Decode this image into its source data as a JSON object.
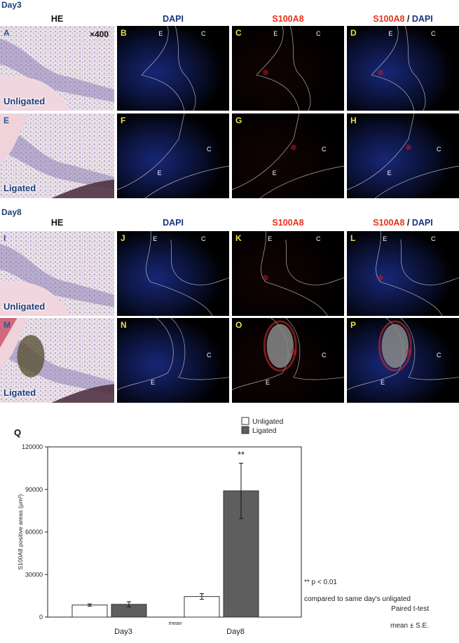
{
  "days": [
    {
      "label": "Day3",
      "rows": [
        {
          "condition": "Unligated",
          "letters": [
            "A",
            "B",
            "C",
            "D"
          ],
          "magnification": "×400"
        },
        {
          "condition": "Ligated",
          "letters": [
            "E",
            "F",
            "G",
            "H"
          ],
          "magnification": ""
        }
      ]
    },
    {
      "label": "Day8",
      "rows": [
        {
          "condition": "Unligated",
          "letters": [
            "I",
            "J",
            "K",
            "L"
          ],
          "magnification": ""
        },
        {
          "condition": "Ligated",
          "letters": [
            "M",
            "N",
            "O",
            "P"
          ],
          "magnification": ""
        }
      ]
    }
  ],
  "column_headers": {
    "he": "HE",
    "dapi": "DAPI",
    "s100a8": "S100A8",
    "merge_s100a8": "S100A8",
    "merge_slash": " / ",
    "merge_dapi": "DAPI"
  },
  "region_labels": {
    "epithelium": "E",
    "connective": "C"
  },
  "colors": {
    "dapi_blue": "#1a3580",
    "s100a8_red": "#e8301c",
    "panel_letter_he": "#2d5696",
    "panel_letter_fluor": "#e8e04a",
    "bar_unligated": "#ffffff",
    "bar_ligated": "#5e5e5e"
  },
  "chart_data": {
    "panel_letter": "Q",
    "type": "bar",
    "categories": [
      "Day3",
      "Day8"
    ],
    "series": [
      {
        "name": "Unligated",
        "values": [
          8500,
          14500
        ],
        "errors": [
          800,
          2000
        ]
      },
      {
        "name": "Ligated",
        "values": [
          9000,
          89000
        ],
        "errors": [
          1800,
          19500
        ]
      }
    ],
    "ylabel": "S100A8 positive areas (μm²)",
    "ylim": [
      0,
      120000
    ],
    "yticks": [
      0,
      30000,
      60000,
      90000,
      120000
    ],
    "significance_marker": "**",
    "mean_label": "mean",
    "legend_position": "top-center",
    "notes": [
      "** p < 0.01",
      "compared to same day's unligated",
      "Paired t-test",
      "mean ± S.E."
    ]
  }
}
